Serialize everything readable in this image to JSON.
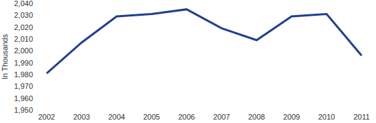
{
  "chart_data": {
    "type": "line",
    "y_label": "In Thousands",
    "categories": [
      "2002",
      "2003",
      "2004",
      "2005",
      "2006",
      "2007",
      "2008",
      "2009",
      "2010",
      "2011"
    ],
    "values": [
      1981,
      2007,
      2029,
      2031,
      2035,
      2019,
      2009,
      2029,
      2031,
      1996
    ],
    "color": "#213e8f",
    "ylim": [
      1950,
      2040
    ],
    "yticks": [
      {
        "value": 1950,
        "label": "1,950"
      },
      {
        "value": 1960,
        "label": "1,960"
      },
      {
        "value": 1970,
        "label": "1,970"
      },
      {
        "value": 1980,
        "label": "1,980"
      },
      {
        "value": 1990,
        "label": "1,990"
      },
      {
        "value": 2000,
        "label": "2,000"
      },
      {
        "value": 2010,
        "label": "2,010"
      },
      {
        "value": 2020,
        "label": "2,020"
      },
      {
        "value": 2030,
        "label": "2,030"
      },
      {
        "value": 2040,
        "label": "2,040"
      }
    ],
    "grid": false
  }
}
